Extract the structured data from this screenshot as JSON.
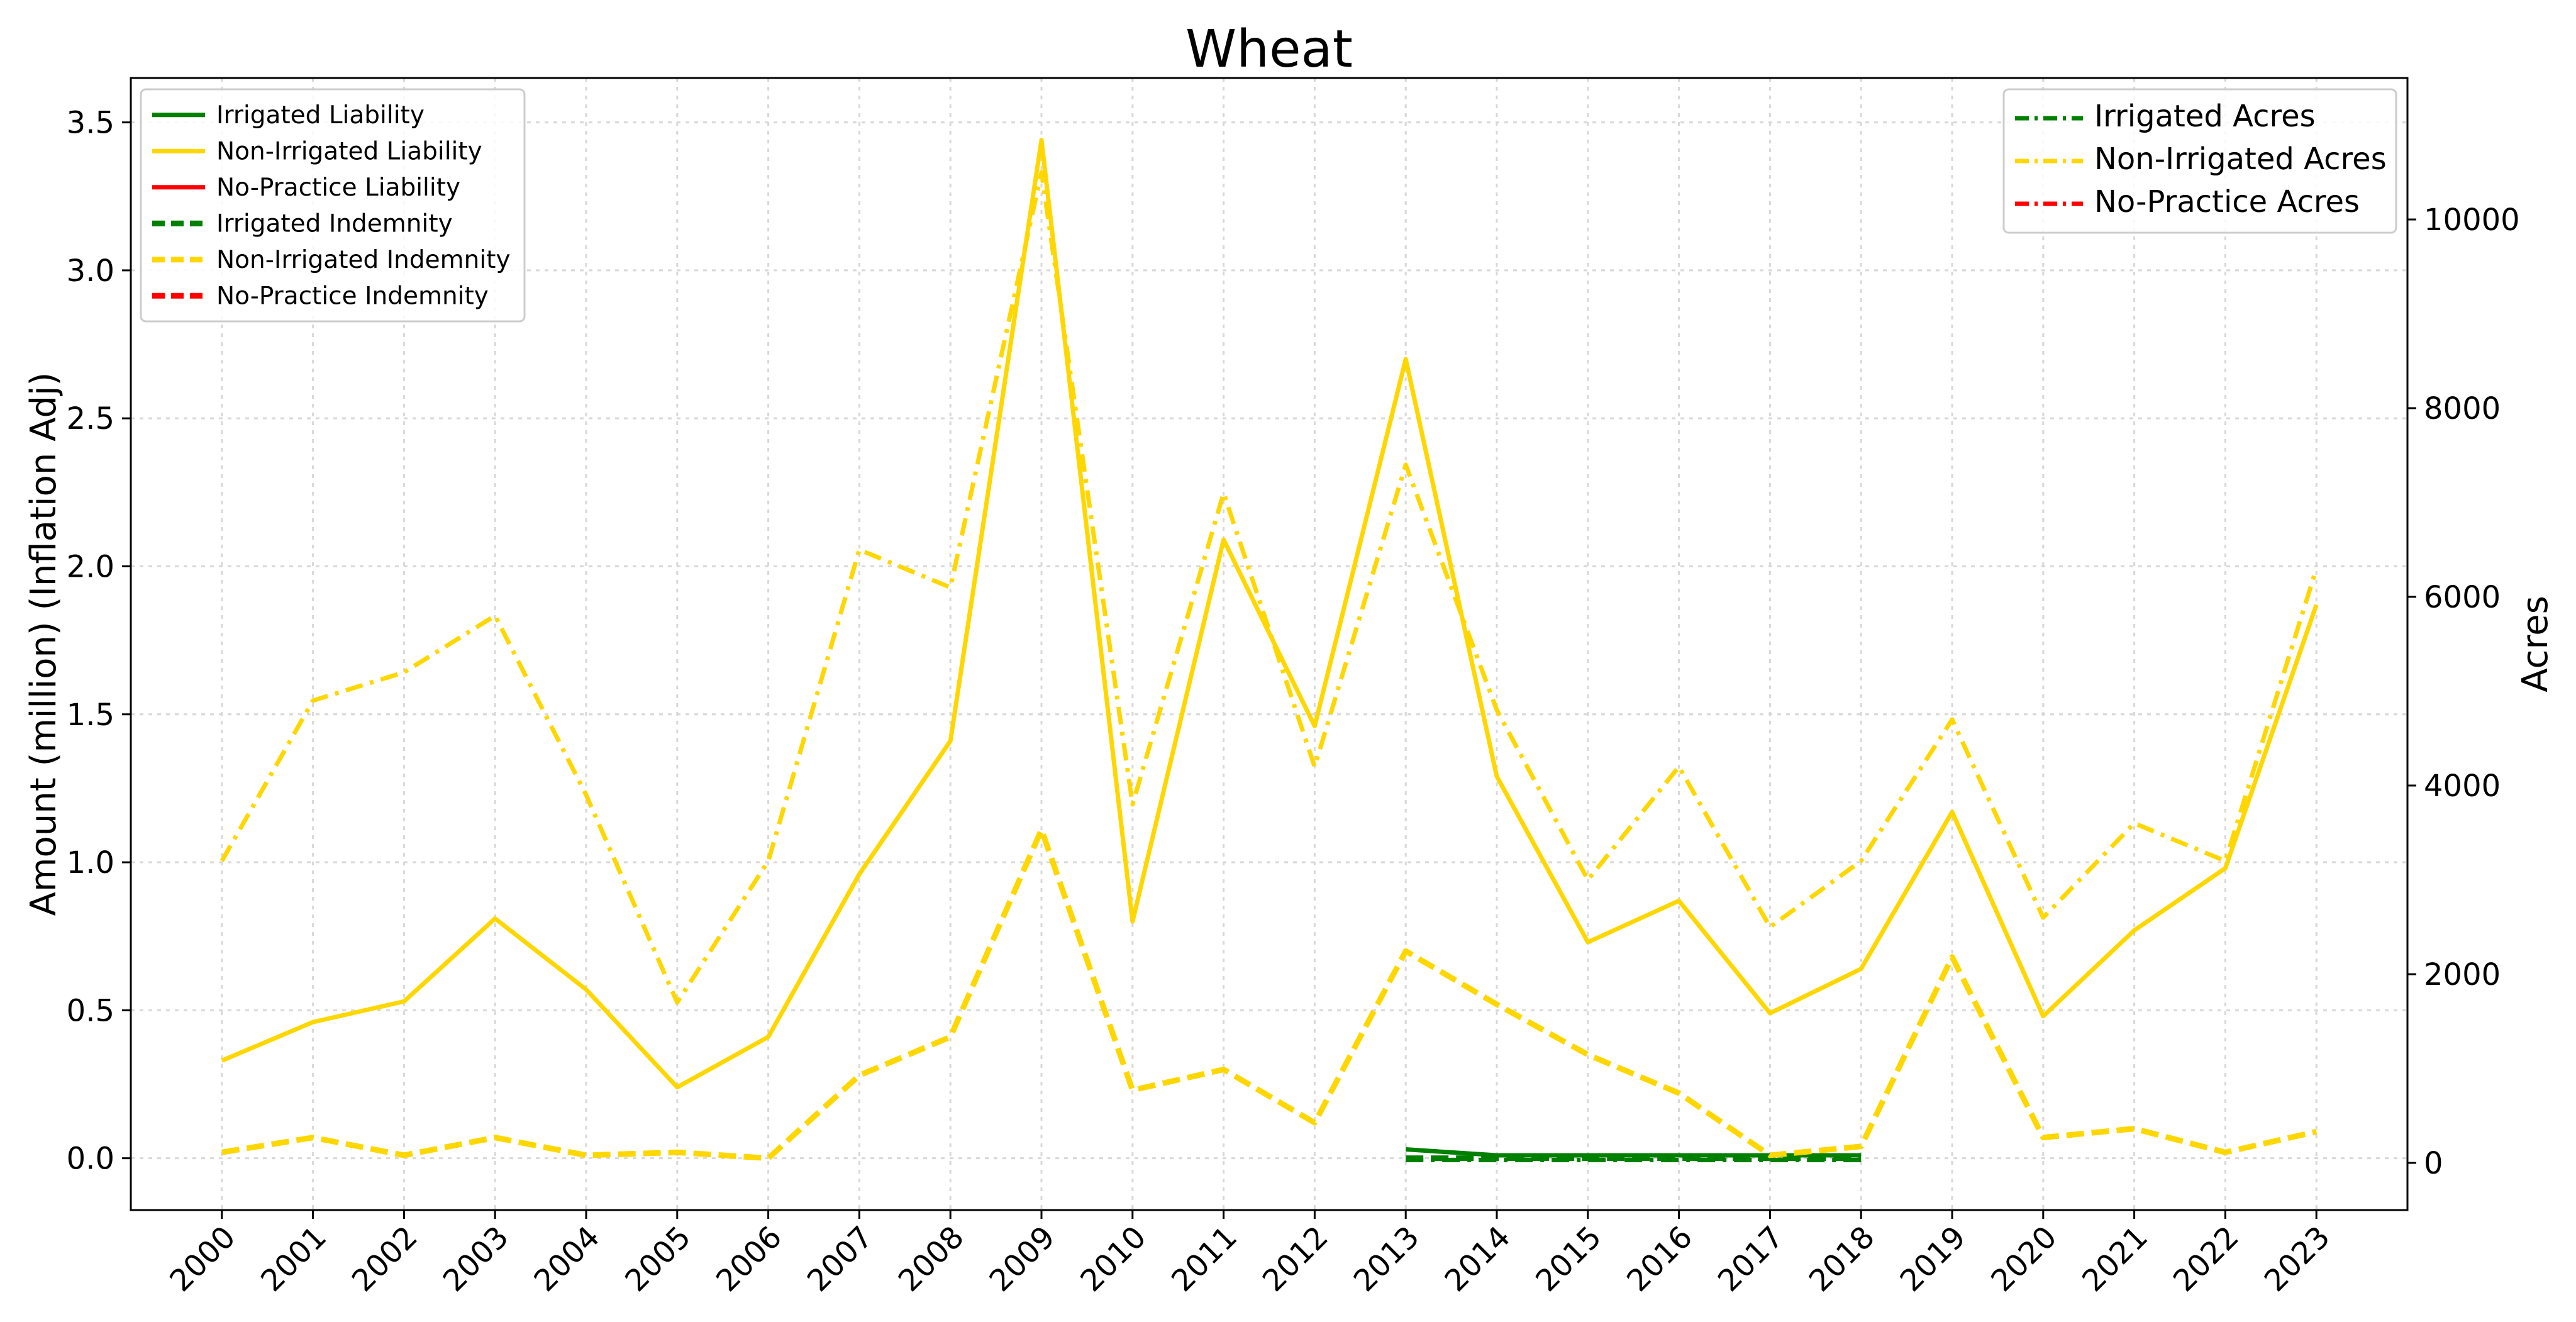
{
  "chart_data": {
    "type": "line",
    "title": "Wheat",
    "ylabel_left": "Amount (million) (Inflation Adj)",
    "ylabel_right": "Acres",
    "xlim": [
      1999.0,
      2024.0
    ],
    "ylim_left": [
      -0.175,
      3.65
    ],
    "ylim_right": [
      -500,
      11500
    ],
    "yticks_left": [
      "0.0",
      "0.5",
      "1.0",
      "1.5",
      "2.0",
      "2.5",
      "3.0",
      "3.5"
    ],
    "yticks_right": [
      "0",
      "2000",
      "4000",
      "6000",
      "8000",
      "10000"
    ],
    "grid": true,
    "x": [
      "2000",
      "2001",
      "2002",
      "2003",
      "2004",
      "2005",
      "2006",
      "2007",
      "2008",
      "2009",
      "2010",
      "2011",
      "2012",
      "2013",
      "2014",
      "2015",
      "2016",
      "2017",
      "2018",
      "2019",
      "2020",
      "2021",
      "2022",
      "2023"
    ],
    "legend_left_placement": "top-left",
    "legend_right_placement": "top-right",
    "series": [
      {
        "name": "Irrigated Liability",
        "axis": "left",
        "style": "solid",
        "color": "#008000",
        "values": [
          null,
          null,
          null,
          null,
          null,
          null,
          null,
          null,
          null,
          null,
          null,
          null,
          null,
          0.03,
          0.01,
          0.01,
          0.01,
          0.01,
          0.01,
          null,
          null,
          null,
          null,
          null
        ]
      },
      {
        "name": "Non-Irrigated Liability",
        "axis": "left",
        "style": "solid",
        "color": "#FFD700",
        "values": [
          0.33,
          0.46,
          0.53,
          0.81,
          0.57,
          0.24,
          0.41,
          0.96,
          1.41,
          3.44,
          0.8,
          2.09,
          1.46,
          2.7,
          1.29,
          0.73,
          0.87,
          0.49,
          0.64,
          1.17,
          0.48,
          0.77,
          0.98,
          1.87
        ]
      },
      {
        "name": "No-Practice Liability",
        "axis": "left",
        "style": "solid",
        "color": "#FF0000",
        "values": [
          null,
          null,
          null,
          null,
          null,
          null,
          null,
          null,
          null,
          null,
          null,
          null,
          null,
          null,
          null,
          null,
          null,
          null,
          null,
          null,
          null,
          null,
          null,
          null
        ]
      },
      {
        "name": "Irrigated Indemnity",
        "axis": "left",
        "style": "dashed",
        "color": "#008000",
        "values": [
          null,
          null,
          null,
          null,
          null,
          null,
          null,
          null,
          null,
          null,
          null,
          null,
          null,
          0.0,
          0.0,
          0.0,
          0.0,
          0.0,
          0.0,
          null,
          null,
          null,
          null,
          null
        ]
      },
      {
        "name": "Non-Irrigated Indemnity",
        "axis": "left",
        "style": "dashed",
        "color": "#FFD700",
        "values": [
          0.02,
          0.07,
          0.01,
          0.07,
          0.01,
          0.02,
          0.0,
          0.28,
          0.41,
          1.11,
          0.23,
          0.3,
          0.12,
          0.7,
          0.52,
          0.35,
          0.22,
          0.01,
          0.04,
          0.68,
          0.07,
          0.1,
          0.02,
          0.09
        ]
      },
      {
        "name": "No-Practice Indemnity",
        "axis": "left",
        "style": "dashed",
        "color": "#FF0000",
        "values": [
          null,
          null,
          null,
          null,
          null,
          null,
          null,
          null,
          null,
          null,
          null,
          null,
          null,
          null,
          null,
          null,
          null,
          null,
          null,
          null,
          null,
          null,
          null,
          null
        ]
      },
      {
        "name": "Irrigated Acres",
        "axis": "right",
        "style": "dashdot",
        "color": "#008000",
        "values": [
          null,
          null,
          null,
          null,
          null,
          null,
          null,
          null,
          null,
          null,
          null,
          null,
          null,
          30,
          30,
          30,
          30,
          30,
          30,
          null,
          null,
          null,
          null,
          null
        ]
      },
      {
        "name": "Non-Irrigated Acres",
        "axis": "right",
        "style": "dashdot",
        "color": "#FFD700",
        "values": [
          3200,
          4900,
          5200,
          5800,
          3900,
          1700,
          3200,
          6500,
          6100,
          10500,
          3800,
          7100,
          4200,
          7400,
          4800,
          3000,
          4200,
          2500,
          3200,
          4700,
          2600,
          3600,
          3200,
          6300
        ]
      },
      {
        "name": "No-Practice Acres",
        "axis": "right",
        "style": "dashdot",
        "color": "#FF0000",
        "values": [
          null,
          null,
          null,
          null,
          null,
          null,
          null,
          null,
          null,
          null,
          null,
          null,
          null,
          null,
          null,
          null,
          null,
          null,
          null,
          null,
          null,
          null,
          null,
          null
        ]
      }
    ],
    "legend_left": [
      "Irrigated Liability",
      "Non-Irrigated Liability",
      "No-Practice Liability",
      "Irrigated Indemnity",
      "Non-Irrigated Indemnity",
      "No-Practice Indemnity"
    ],
    "legend_right": [
      "Irrigated Acres",
      "Non-Irrigated Acres",
      "No-Practice Acres"
    ]
  }
}
